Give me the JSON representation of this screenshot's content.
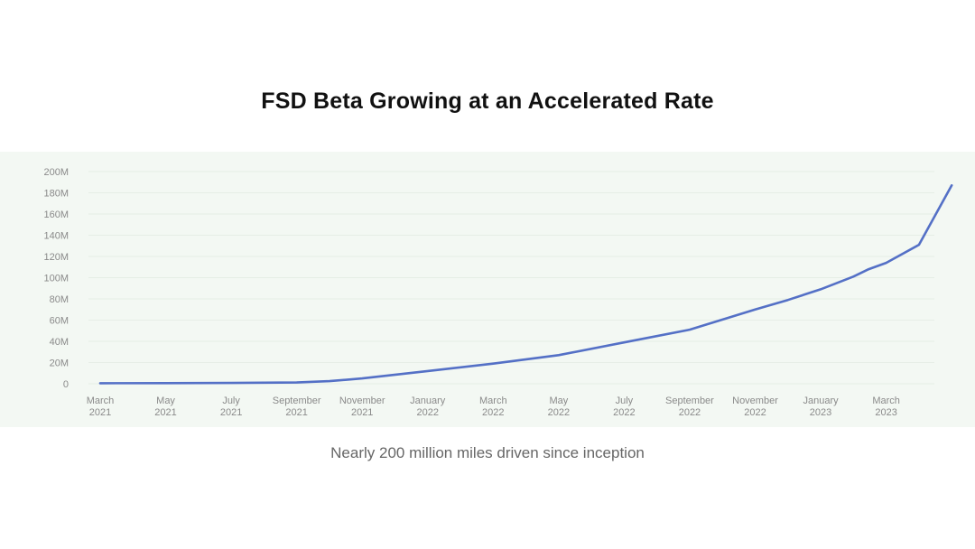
{
  "slide": {
    "title": "FSD Beta Growing at an Accelerated Rate",
    "caption": "Nearly 200 million miles driven since inception"
  },
  "chart_data": {
    "type": "line",
    "title": "",
    "xlabel": "",
    "ylabel": "",
    "ylim": [
      0,
      200
    ],
    "y_unit": "M",
    "y_ticks": [
      "0",
      "20M",
      "40M",
      "60M",
      "80M",
      "100M",
      "120M",
      "140M",
      "160M",
      "180M",
      "200M"
    ],
    "x_ticks": [
      {
        "month": "March",
        "year": "2021",
        "date": "2021-03"
      },
      {
        "month": "May",
        "year": "2021",
        "date": "2021-05"
      },
      {
        "month": "July",
        "year": "2021",
        "date": "2021-07"
      },
      {
        "month": "September",
        "year": "2021",
        "date": "2021-09"
      },
      {
        "month": "November",
        "year": "2021",
        "date": "2021-11"
      },
      {
        "month": "January",
        "year": "2022",
        "date": "2022-01"
      },
      {
        "month": "March",
        "year": "2022",
        "date": "2022-03"
      },
      {
        "month": "May",
        "year": "2022",
        "date": "2022-05"
      },
      {
        "month": "July",
        "year": "2022",
        "date": "2022-07"
      },
      {
        "month": "September",
        "year": "2022",
        "date": "2022-09"
      },
      {
        "month": "November",
        "year": "2022",
        "date": "2022-11"
      },
      {
        "month": "January",
        "year": "2023",
        "date": "2023-01"
      },
      {
        "month": "March",
        "year": "2023",
        "date": "2023-03"
      }
    ],
    "grid": true,
    "legend": "none",
    "line_color": "#5470c6",
    "series": [
      {
        "points": [
          {
            "x": "2021-03",
            "y": 0.5
          },
          {
            "x": "2021-05",
            "y": 0.6
          },
          {
            "x": "2021-07",
            "y": 0.8
          },
          {
            "x": "2021-09",
            "y": 1.2
          },
          {
            "x": "2021-10",
            "y": 2.5
          },
          {
            "x": "2021-11",
            "y": 5
          },
          {
            "x": "2022-01",
            "y": 12
          },
          {
            "x": "2022-03",
            "y": 19
          },
          {
            "x": "2022-05",
            "y": 27
          },
          {
            "x": "2022-07",
            "y": 39
          },
          {
            "x": "2022-09",
            "y": 51
          },
          {
            "x": "2022-11",
            "y": 70
          },
          {
            "x": "2022-12",
            "y": 79
          },
          {
            "x": "2023-01",
            "y": 89
          },
          {
            "x": "2023-02",
            "y": 101
          },
          {
            "x": "2023-02-15",
            "y": 108
          },
          {
            "x": "2023-03",
            "y": 114
          },
          {
            "x": "2023-04",
            "y": 131
          },
          {
            "x": "2023-05",
            "y": 187
          }
        ]
      }
    ]
  }
}
